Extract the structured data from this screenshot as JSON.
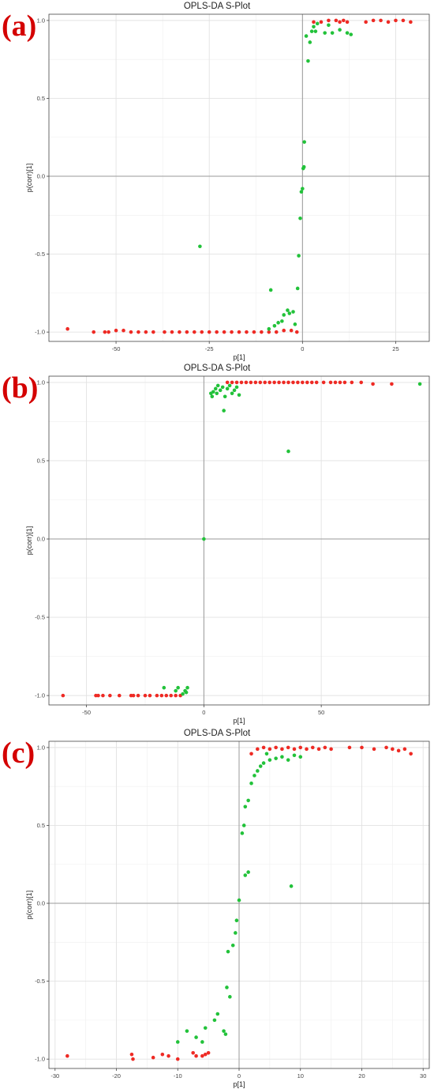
{
  "charts": [
    {
      "letter": "(a)",
      "chart_data": {
        "type": "scatter",
        "title": "OPLS-DA S-Plot",
        "xlabel": "p[1]",
        "ylabel": "p(corr)[1]",
        "xlim": [
          -68,
          34
        ],
        "ylim": [
          -1.06,
          1.04
        ],
        "xticks": [
          -50,
          -25,
          0,
          25
        ],
        "yticks": [
          -1.0,
          -0.5,
          0.0,
          0.5,
          1.0
        ],
        "grid": true,
        "series": [
          {
            "color": "#ee2a24",
            "points": [
              [
                -63,
                -0.98
              ],
              [
                -56,
                -1.0
              ],
              [
                -53,
                -1.0
              ],
              [
                -52,
                -1.0
              ],
              [
                -50,
                -0.99
              ],
              [
                -48,
                -0.99
              ],
              [
                -46,
                -1.0
              ],
              [
                -44,
                -1.0
              ],
              [
                -42,
                -1.0
              ],
              [
                -40,
                -1.0
              ],
              [
                -37,
                -1.0
              ],
              [
                -35,
                -1.0
              ],
              [
                -33,
                -1.0
              ],
              [
                -31,
                -1.0
              ],
              [
                -29,
                -1.0
              ],
              [
                -27,
                -1.0
              ],
              [
                -25,
                -1.0
              ],
              [
                -23,
                -1.0
              ],
              [
                -21,
                -1.0
              ],
              [
                -19,
                -1.0
              ],
              [
                -17,
                -1.0
              ],
              [
                -15,
                -1.0
              ],
              [
                -13,
                -1.0
              ],
              [
                -11,
                -1.0
              ],
              [
                -9,
                -1.0
              ],
              [
                -7,
                -1.0
              ],
              [
                -5,
                -0.99
              ],
              [
                -3,
                -0.99
              ],
              [
                -1.5,
                -1.0
              ],
              [
                3,
                0.99
              ],
              [
                5,
                0.99
              ],
              [
                7,
                1.0
              ],
              [
                9,
                1.0
              ],
              [
                10,
                0.99
              ],
              [
                11,
                1.0
              ],
              [
                12,
                0.99
              ],
              [
                17,
                0.99
              ],
              [
                19,
                1.0
              ],
              [
                21,
                1.0
              ],
              [
                23,
                0.99
              ],
              [
                25,
                1.0
              ],
              [
                27,
                1.0
              ],
              [
                29,
                0.99
              ]
            ]
          },
          {
            "color": "#22c23a",
            "points": [
              [
                -27.5,
                -0.45
              ],
              [
                -9,
                -0.98
              ],
              [
                -8.5,
                -0.73
              ],
              [
                -7.5,
                -0.96
              ],
              [
                -6.5,
                -0.94
              ],
              [
                -5.5,
                -0.93
              ],
              [
                -5,
                -0.89
              ],
              [
                -4,
                -0.86
              ],
              [
                -3.5,
                -0.88
              ],
              [
                -2.5,
                -0.87
              ],
              [
                -2,
                -0.95
              ],
              [
                -1.3,
                -0.72
              ],
              [
                -1,
                -0.51
              ],
              [
                -0.6,
                -0.27
              ],
              [
                -0.3,
                -0.1
              ],
              [
                0,
                -0.08
              ],
              [
                0.2,
                0.05
              ],
              [
                0.4,
                0.06
              ],
              [
                0.5,
                0.22
              ],
              [
                1,
                0.9
              ],
              [
                1.5,
                0.74
              ],
              [
                2,
                0.86
              ],
              [
                2.5,
                0.93
              ],
              [
                3,
                0.96
              ],
              [
                3.5,
                0.93
              ],
              [
                4,
                0.98
              ],
              [
                6,
                0.92
              ],
              [
                7,
                0.97
              ],
              [
                8,
                0.92
              ],
              [
                10,
                0.94
              ],
              [
                12,
                0.92
              ],
              [
                13,
                0.91
              ]
            ]
          }
        ]
      }
    },
    {
      "letter": "(b)",
      "chart_data": {
        "type": "scatter",
        "title": "OPLS-DA S-Plot",
        "xlabel": "p[1]",
        "ylabel": "p(corr)[1]",
        "xlim": [
          -66,
          96
        ],
        "ylim": [
          -1.06,
          1.04
        ],
        "xticks": [
          -50,
          0,
          50
        ],
        "yticks": [
          -1.0,
          -0.5,
          0.0,
          0.5,
          1.0
        ],
        "grid": true,
        "series": [
          {
            "color": "#ee2a24",
            "points": [
              [
                -60,
                -1.0
              ],
              [
                -46,
                -1.0
              ],
              [
                -45,
                -1.0
              ],
              [
                -43,
                -1.0
              ],
              [
                -40,
                -1.0
              ],
              [
                -36,
                -1.0
              ],
              [
                -31,
                -1.0
              ],
              [
                -30,
                -1.0
              ],
              [
                -28,
                -1.0
              ],
              [
                -25,
                -1.0
              ],
              [
                -23,
                -1.0
              ],
              [
                -20,
                -1.0
              ],
              [
                -18,
                -1.0
              ],
              [
                -16,
                -1.0
              ],
              [
                -14,
                -1.0
              ],
              [
                -12,
                -1.0
              ],
              [
                -10,
                -1.0
              ],
              [
                10,
                1.0
              ],
              [
                12,
                1.0
              ],
              [
                14,
                1.0
              ],
              [
                16,
                1.0
              ],
              [
                18,
                1.0
              ],
              [
                20,
                1.0
              ],
              [
                22,
                1.0
              ],
              [
                24,
                1.0
              ],
              [
                26,
                1.0
              ],
              [
                28,
                1.0
              ],
              [
                30,
                1.0
              ],
              [
                32,
                1.0
              ],
              [
                34,
                1.0
              ],
              [
                36,
                1.0
              ],
              [
                38,
                1.0
              ],
              [
                40,
                1.0
              ],
              [
                42,
                1.0
              ],
              [
                44,
                1.0
              ],
              [
                46,
                1.0
              ],
              [
                48,
                1.0
              ],
              [
                51,
                1.0
              ],
              [
                54,
                1.0
              ],
              [
                56,
                1.0
              ],
              [
                58,
                1.0
              ],
              [
                60,
                1.0
              ],
              [
                63,
                1.0
              ],
              [
                67,
                1.0
              ],
              [
                72,
                0.99
              ],
              [
                80,
                0.99
              ]
            ]
          },
          {
            "color": "#22c23a",
            "points": [
              [
                -17,
                -0.95
              ],
              [
                -12,
                -0.97
              ],
              [
                -11,
                -0.95
              ],
              [
                -9,
                -0.99
              ],
              [
                -8,
                -0.97
              ],
              [
                -7,
                -0.95
              ],
              [
                -7.5,
                -0.98
              ],
              [
                0,
                0.0
              ],
              [
                3,
                0.93
              ],
              [
                3.5,
                0.91
              ],
              [
                4,
                0.94
              ],
              [
                5,
                0.96
              ],
              [
                5.5,
                0.93
              ],
              [
                6,
                0.98
              ],
              [
                7,
                0.95
              ],
              [
                8,
                0.97
              ],
              [
                8.5,
                0.82
              ],
              [
                9,
                0.91
              ],
              [
                10,
                0.96
              ],
              [
                11,
                0.98
              ],
              [
                12,
                0.93
              ],
              [
                13,
                0.95
              ],
              [
                14,
                0.97
              ],
              [
                15,
                0.92
              ],
              [
                36,
                0.56
              ],
              [
                92,
                0.99
              ]
            ]
          }
        ]
      }
    },
    {
      "letter": "(c)",
      "chart_data": {
        "type": "scatter",
        "title": "OPLS-DA S-Plot",
        "xlabel": "p[1]",
        "ylabel": "p(corr)[1]",
        "xlim": [
          -31,
          31
        ],
        "ylim": [
          -1.06,
          1.04
        ],
        "xticks": [
          -30,
          -20,
          -10,
          0,
          10,
          20,
          30
        ],
        "yticks": [
          -1.0,
          -0.5,
          0.0,
          0.5,
          1.0
        ],
        "grid": true,
        "series": [
          {
            "color": "#ee2a24",
            "points": [
              [
                -28,
                -0.98
              ],
              [
                -17.5,
                -0.97
              ],
              [
                -17.3,
                -1.0
              ],
              [
                -14,
                -0.99
              ],
              [
                -12.5,
                -0.97
              ],
              [
                -11.5,
                -0.98
              ],
              [
                -10,
                -1.0
              ],
              [
                -7.5,
                -0.96
              ],
              [
                -7,
                -0.98
              ],
              [
                -6,
                -0.98
              ],
              [
                -5.5,
                -0.97
              ],
              [
                -5,
                -0.96
              ],
              [
                2,
                0.96
              ],
              [
                3,
                0.99
              ],
              [
                4,
                1.0
              ],
              [
                5,
                0.99
              ],
              [
                6,
                1.0
              ],
              [
                7,
                0.99
              ],
              [
                8,
                1.0
              ],
              [
                9,
                0.99
              ],
              [
                10,
                1.0
              ],
              [
                11,
                0.99
              ],
              [
                12,
                1.0
              ],
              [
                13,
                0.99
              ],
              [
                14,
                1.0
              ],
              [
                15,
                0.99
              ],
              [
                18,
                1.0
              ],
              [
                20,
                1.0
              ],
              [
                22,
                0.99
              ],
              [
                24,
                1.0
              ],
              [
                25,
                0.99
              ],
              [
                26,
                0.98
              ],
              [
                27,
                0.99
              ],
              [
                28,
                0.96
              ]
            ]
          },
          {
            "color": "#22c23a",
            "points": [
              [
                -10,
                -0.89
              ],
              [
                -8.5,
                -0.82
              ],
              [
                -7,
                -0.86
              ],
              [
                -6,
                -0.89
              ],
              [
                -5.5,
                -0.8
              ],
              [
                -4,
                -0.75
              ],
              [
                -3.5,
                -0.71
              ],
              [
                -2.5,
                -0.82
              ],
              [
                -2.2,
                -0.84
              ],
              [
                -2,
                -0.54
              ],
              [
                -1.8,
                -0.31
              ],
              [
                -1.5,
                -0.6
              ],
              [
                -1,
                -0.27
              ],
              [
                -0.6,
                -0.19
              ],
              [
                -0.4,
                -0.11
              ],
              [
                0,
                0.02
              ],
              [
                1,
                0.18
              ],
              [
                1.5,
                0.2
              ],
              [
                0.5,
                0.45
              ],
              [
                0.8,
                0.5
              ],
              [
                1,
                0.62
              ],
              [
                1.5,
                0.66
              ],
              [
                2,
                0.77
              ],
              [
                2.5,
                0.82
              ],
              [
                3,
                0.85
              ],
              [
                3.5,
                0.88
              ],
              [
                4,
                0.9
              ],
              [
                5,
                0.92
              ],
              [
                6,
                0.93
              ],
              [
                7,
                0.94
              ],
              [
                8,
                0.92
              ],
              [
                9,
                0.95
              ],
              [
                10,
                0.94
              ],
              [
                4.5,
                0.96
              ],
              [
                8.5,
                0.11
              ]
            ]
          }
        ]
      }
    }
  ]
}
